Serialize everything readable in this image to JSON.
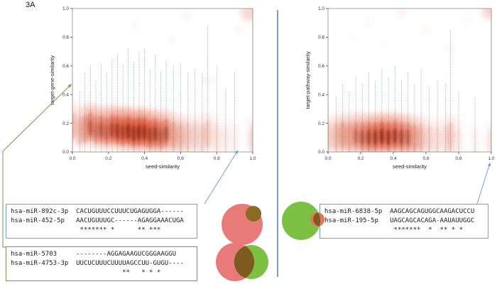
{
  "figure": {
    "label": "3A"
  },
  "colors": {
    "callout_blue": "#74a0cc",
    "callout_green": "#759a4c",
    "divider_blue": "#74a0cc",
    "density_red": "#e23b14",
    "density_core": "#3f0c00",
    "strand_gray": "#3d5a68",
    "venn_red": "#e87a7a",
    "venn_green": "#7cc143",
    "venn_overlap": "#7d5a20",
    "venn_small_brown": "#8a6b22",
    "venn_small_red": "#e0785a"
  },
  "chart_data": [
    {
      "type": "scatter",
      "subtype": "smoothed-density-scatter",
      "title": "",
      "xlabel": "seed-similarity",
      "ylabel": "target-gene-similarity",
      "xlim": [
        0.0,
        1.0
      ],
      "ylim": [
        0.0,
        1.0
      ],
      "grid": false,
      "xticks": [
        "0.0",
        "0.2",
        "0.4",
        "0.6",
        "0.8",
        "1.0"
      ],
      "yticks": [
        "0.0",
        "0.2",
        "0.4",
        "0.6",
        "0.8",
        "1.0"
      ],
      "columns": [
        {
          "x": 0.0,
          "top": 0.52,
          "d": 0.4,
          "yc": 0.2
        },
        {
          "x": 0.04,
          "top": 0.42,
          "d": 0.3,
          "yc": 0.16
        },
        {
          "x": 0.07,
          "top": 0.55,
          "d": 0.5,
          "yc": 0.18
        },
        {
          "x": 0.1,
          "top": 0.6,
          "d": 0.65,
          "yc": 0.2
        },
        {
          "x": 0.13,
          "top": 0.5,
          "d": 0.55,
          "yc": 0.17
        },
        {
          "x": 0.16,
          "top": 0.62,
          "d": 0.7,
          "yc": 0.18
        },
        {
          "x": 0.19,
          "top": 0.55,
          "d": 0.62,
          "yc": 0.16
        },
        {
          "x": 0.22,
          "top": 0.65,
          "d": 0.8,
          "yc": 0.18
        },
        {
          "x": 0.25,
          "top": 0.68,
          "d": 0.9,
          "yc": 0.17
        },
        {
          "x": 0.28,
          "top": 0.6,
          "d": 0.85,
          "yc": 0.16
        },
        {
          "x": 0.31,
          "top": 0.72,
          "d": 1.0,
          "yc": 0.17
        },
        {
          "x": 0.34,
          "top": 0.63,
          "d": 0.95,
          "yc": 0.15
        },
        {
          "x": 0.37,
          "top": 0.7,
          "d": 1.0,
          "yc": 0.16
        },
        {
          "x": 0.4,
          "top": 0.72,
          "d": 0.95,
          "yc": 0.16
        },
        {
          "x": 0.43,
          "top": 0.58,
          "d": 0.82,
          "yc": 0.14
        },
        {
          "x": 0.46,
          "top": 0.68,
          "d": 0.85,
          "yc": 0.15
        },
        {
          "x": 0.49,
          "top": 0.56,
          "d": 0.65,
          "yc": 0.13
        },
        {
          "x": 0.52,
          "top": 0.64,
          "d": 0.72,
          "yc": 0.15
        },
        {
          "x": 0.56,
          "top": 0.6,
          "d": 0.52,
          "yc": 0.13
        },
        {
          "x": 0.6,
          "top": 0.62,
          "d": 0.4,
          "yc": 0.12
        },
        {
          "x": 0.64,
          "top": 0.55,
          "d": 0.3,
          "yc": 0.12
        },
        {
          "x": 0.68,
          "top": 0.58,
          "d": 0.24,
          "yc": 0.12
        },
        {
          "x": 0.72,
          "top": 0.55,
          "d": 0.2,
          "yc": 0.11
        },
        {
          "x": 0.75,
          "top": 0.88,
          "d": 0.28,
          "yc": 0.14
        },
        {
          "x": 0.8,
          "top": 0.6,
          "d": 0.16,
          "yc": 0.11
        },
        {
          "x": 0.85,
          "top": 0.45,
          "d": 0.1,
          "yc": 0.1
        },
        {
          "x": 0.9,
          "top": 0.55,
          "d": 0.08,
          "yc": 0.1
        },
        {
          "x": 1.0,
          "top": 1.0,
          "d": 0.25,
          "yc": 0.1
        }
      ],
      "extra_blobs": [
        {
          "x": 0.98,
          "y": 0.97,
          "r": 12,
          "o": 0.2
        },
        {
          "x": 0.92,
          "y": 0.85,
          "r": 5,
          "o": 0.07
        },
        {
          "x": 0.75,
          "y": 0.5,
          "r": 6,
          "o": 0.09
        },
        {
          "x": 0.55,
          "y": 0.78,
          "r": 5,
          "o": 0.07
        },
        {
          "x": 0.35,
          "y": 0.88,
          "r": 5,
          "o": 0.06
        },
        {
          "x": 0.63,
          "y": 0.95,
          "r": 6,
          "o": 0.07
        }
      ]
    },
    {
      "type": "scatter",
      "subtype": "smoothed-density-scatter",
      "title": "",
      "xlabel": "seed-similarity",
      "ylabel": "target-pathway-similarity",
      "xlim": [
        0.0,
        1.0
      ],
      "ylim": [
        0.0,
        1.0
      ],
      "grid": false,
      "xticks": [
        "0.0",
        "0.2",
        "0.4",
        "0.6",
        "0.8",
        "1.0"
      ],
      "yticks": [
        "0.0",
        "0.2",
        "0.4",
        "0.6",
        "0.8",
        "1.0"
      ],
      "columns": [
        {
          "x": 0.0,
          "top": 0.42,
          "d": 0.32,
          "yc": 0.12
        },
        {
          "x": 0.05,
          "top": 0.38,
          "d": 0.38,
          "yc": 0.12
        },
        {
          "x": 0.09,
          "top": 0.48,
          "d": 0.52,
          "yc": 0.13
        },
        {
          "x": 0.13,
          "top": 0.42,
          "d": 0.48,
          "yc": 0.12
        },
        {
          "x": 0.17,
          "top": 0.52,
          "d": 0.62,
          "yc": 0.13
        },
        {
          "x": 0.21,
          "top": 0.48,
          "d": 0.72,
          "yc": 0.12
        },
        {
          "x": 0.25,
          "top": 0.55,
          "d": 0.85,
          "yc": 0.12
        },
        {
          "x": 0.29,
          "top": 0.5,
          "d": 0.92,
          "yc": 0.12
        },
        {
          "x": 0.33,
          "top": 0.58,
          "d": 1.0,
          "yc": 0.13
        },
        {
          "x": 0.37,
          "top": 0.52,
          "d": 0.95,
          "yc": 0.12
        },
        {
          "x": 0.41,
          "top": 0.6,
          "d": 0.9,
          "yc": 0.13
        },
        {
          "x": 0.45,
          "top": 0.5,
          "d": 0.8,
          "yc": 0.12
        },
        {
          "x": 0.49,
          "top": 0.55,
          "d": 0.68,
          "yc": 0.12
        },
        {
          "x": 0.53,
          "top": 0.48,
          "d": 0.5,
          "yc": 0.11
        },
        {
          "x": 0.57,
          "top": 0.58,
          "d": 0.38,
          "yc": 0.11
        },
        {
          "x": 0.62,
          "top": 0.45,
          "d": 0.25,
          "yc": 0.1
        },
        {
          "x": 0.67,
          "top": 0.5,
          "d": 0.18,
          "yc": 0.1
        },
        {
          "x": 0.72,
          "top": 0.48,
          "d": 0.14,
          "yc": 0.1
        },
        {
          "x": 0.75,
          "top": 0.85,
          "d": 0.3,
          "yc": 0.12
        },
        {
          "x": 0.8,
          "top": 0.42,
          "d": 0.1,
          "yc": 0.09
        },
        {
          "x": 0.9,
          "top": 0.38,
          "d": 0.07,
          "yc": 0.08
        },
        {
          "x": 1.0,
          "top": 0.95,
          "d": 0.18,
          "yc": 0.08
        }
      ],
      "extra_blobs": [
        {
          "x": 0.99,
          "y": 0.98,
          "r": 11,
          "o": 0.22
        },
        {
          "x": 0.45,
          "y": 0.97,
          "r": 6,
          "o": 0.09
        },
        {
          "x": 0.25,
          "y": 0.9,
          "r": 5,
          "o": 0.06
        },
        {
          "x": 0.6,
          "y": 0.85,
          "r": 5,
          "o": 0.07
        },
        {
          "x": 0.75,
          "y": 0.73,
          "r": 5,
          "o": 0.08
        },
        {
          "x": 0.15,
          "y": 0.8,
          "r": 4,
          "o": 0.05
        },
        {
          "x": 0.35,
          "y": 0.75,
          "r": 4,
          "o": 0.05
        },
        {
          "x": 0.85,
          "y": 0.92,
          "r": 5,
          "o": 0.06
        }
      ]
    }
  ],
  "alignments": [
    {
      "id": "mir892c-mir452",
      "border": "blue",
      "rows": [
        {
          "name": "hsa-miR-892c-3p",
          "seq": "CACUGUUUCCUUUCUGAGUGGA------"
        },
        {
          "name": "hsa-miR-452-5p",
          "seq": "AACUGUUUGC------AGAGGAAACUGA"
        }
      ],
      "match": " ******* *      ** ***"
    },
    {
      "id": "mir5703-mir4753",
      "border": "green",
      "rows": [
        {
          "name": "hsa-miR-5703",
          "seq": "--------AGGAGAAGUCGGGAAGGU"
        },
        {
          "name": "hsa-miR-4753-3p",
          "seq": "UUCUCUUUCUUUUAGCCUU-GUGU----"
        }
      ],
      "match": "            **   * * *"
    },
    {
      "id": "mir6838-mir195",
      "border": "blue",
      "rows": [
        {
          "name": "hsa-miR-6838-5p",
          "seq": "AAGCAGCAGUGGCAAGACUCCU"
        },
        {
          "name": "hsa-miR-195-5p",
          "seq": "UAGCAGCACAGA-AAUAUUGGC"
        }
      ],
      "match": " *******  *  ** * *"
    }
  ]
}
